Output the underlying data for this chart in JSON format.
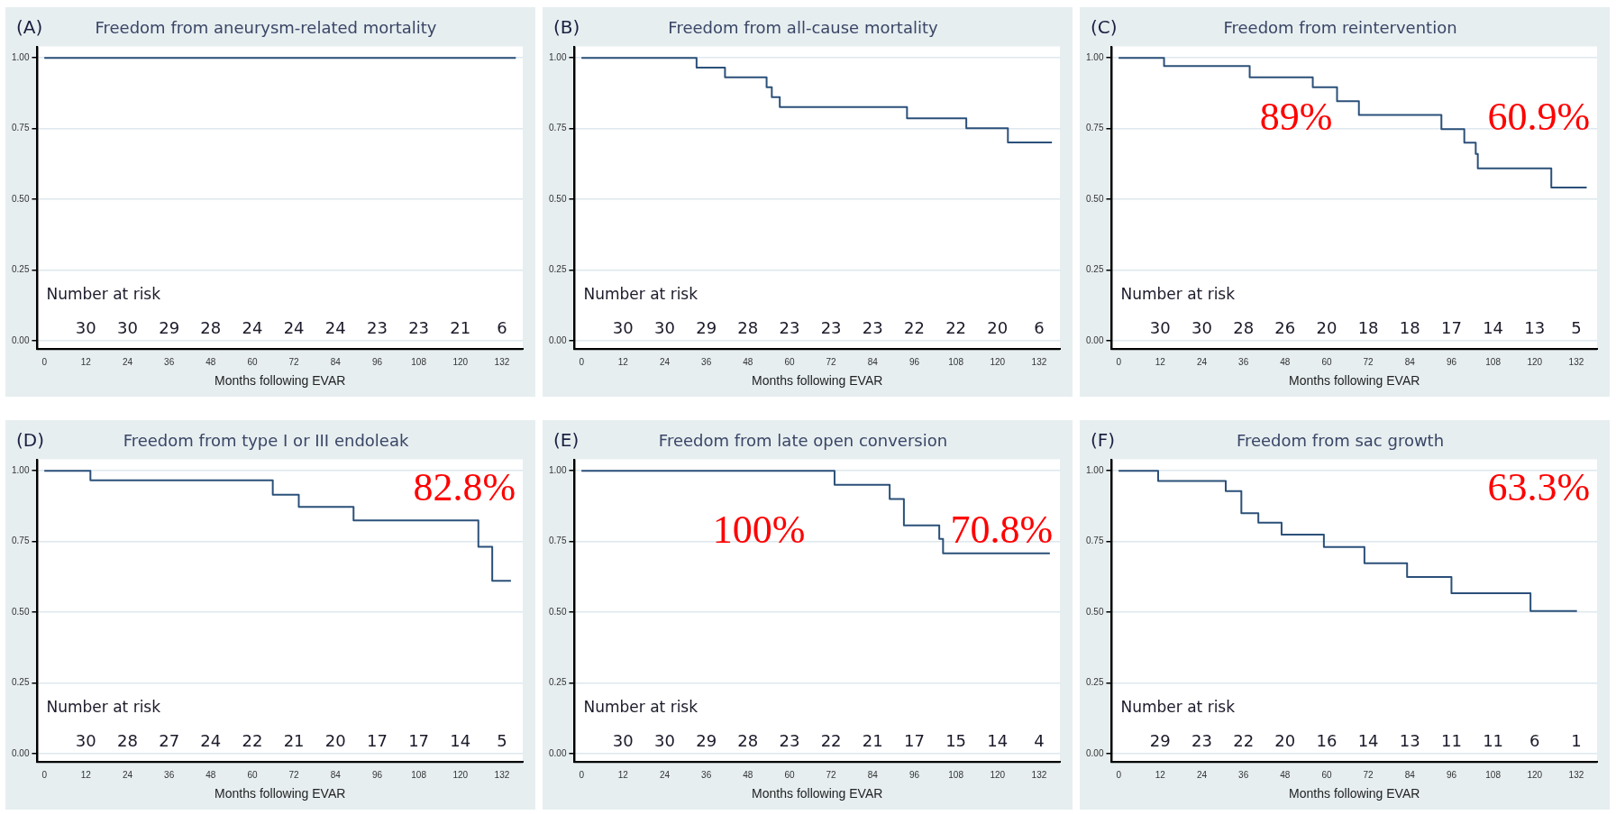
{
  "chart_data": [
    {
      "type": "step",
      "title": "Freedom from aneurysm-related mortality",
      "subtitle": "(A)",
      "xlabel": "Months following EVAR",
      "color": "#2b5079",
      "x": [
        0,
        136
      ],
      "values": [
        1,
        1
      ],
      "xlim": [
        -2,
        138
      ],
      "ylim": [
        -0.03,
        1.04
      ],
      "xticks": [
        0,
        12,
        24,
        36,
        48,
        60,
        72,
        84,
        96,
        108,
        120,
        132
      ],
      "yticks": [
        {
          "value": 0,
          "label": "0.00"
        },
        {
          "value": 0.25,
          "label": "0.25"
        },
        {
          "value": 0.5,
          "label": "0.50"
        },
        {
          "value": 0.75,
          "label": "0.75"
        },
        {
          "value": 1,
          "label": "1.00"
        }
      ],
      "grid": "y",
      "annotations": [
        "Number at risk",
        "30",
        "30",
        "29",
        "28",
        "24",
        "24",
        "24",
        "23",
        "23",
        "21",
        "6"
      ]
    },
    {
      "type": "step",
      "title": "Freedom from all-cause mortality",
      "subtitle": "(B)",
      "xlabel": "Months following EVAR",
      "color": "#2b5079",
      "x": [
        0,
        33.2,
        41.4,
        53.4,
        54.9,
        57.2,
        93.9,
        111,
        123,
        135.7
      ],
      "values": [
        1,
        0.965,
        0.931,
        0.896,
        0.861,
        0.826,
        0.786,
        0.751,
        0.701,
        0.701
      ],
      "xlim": [
        -2,
        138
      ],
      "ylim": [
        -0.03,
        1.04
      ],
      "xticks": [
        0,
        12,
        24,
        36,
        48,
        60,
        72,
        84,
        96,
        108,
        120,
        132
      ],
      "yticks": [
        {
          "value": 0,
          "label": "0.00"
        },
        {
          "value": 0.25,
          "label": "0.25"
        },
        {
          "value": 0.5,
          "label": "0.50"
        },
        {
          "value": 0.75,
          "label": "0.75"
        },
        {
          "value": 1,
          "label": "1.00"
        }
      ],
      "grid": "y",
      "annotations": [
        "Number at risk",
        "30",
        "30",
        "29",
        "28",
        "23",
        "23",
        "23",
        "22",
        "22",
        "20",
        "6"
      ]
    },
    {
      "type": "step",
      "title": "Freedom from reintervention",
      "subtitle": "(C)",
      "xlabel": "Months following EVAR",
      "color": "#2b5079",
      "x": [
        0,
        13.1,
        37.8,
        56,
        63,
        69.3,
        93.1,
        99.7,
        103,
        103.6,
        124.8,
        135
      ],
      "values": [
        1,
        0.971,
        0.931,
        0.896,
        0.847,
        0.798,
        0.748,
        0.7,
        0.66,
        0.609,
        0.541,
        0.541
      ],
      "xlim": [
        -2,
        138
      ],
      "ylim": [
        -0.03,
        1.04
      ],
      "xticks": [
        0,
        12,
        24,
        36,
        48,
        60,
        72,
        84,
        96,
        108,
        120,
        132
      ],
      "yticks": [
        {
          "value": 0,
          "label": "0.00"
        },
        {
          "value": 0.25,
          "label": "0.25"
        },
        {
          "value": 0.5,
          "label": "0.50"
        },
        {
          "value": 0.75,
          "label": "0.75"
        },
        {
          "value": 1,
          "label": "1.00"
        }
      ],
      "grid": "y",
      "annotations": [
        "Number at risk",
        "30",
        "30",
        "28",
        "26",
        "20",
        "18",
        "18",
        "17",
        "14",
        "13",
        "5",
        "89%",
        "60.9%"
      ]
    },
    {
      "type": "step",
      "title": "Freedom from type I or III endoleak",
      "subtitle": "(D)",
      "xlabel": "Months following EVAR",
      "color": "#2b5079",
      "x": [
        0,
        13.3,
        65.9,
        73.4,
        89.2,
        125.2,
        129.2,
        134.6
      ],
      "values": [
        1,
        0.966,
        0.915,
        0.872,
        0.824,
        0.731,
        0.611,
        0.611
      ],
      "xlim": [
        -2,
        138
      ],
      "ylim": [
        -0.03,
        1.04
      ],
      "xticks": [
        0,
        12,
        24,
        36,
        48,
        60,
        72,
        84,
        96,
        108,
        120,
        132
      ],
      "yticks": [
        {
          "value": 0,
          "label": "0.00"
        },
        {
          "value": 0.25,
          "label": "0.25"
        },
        {
          "value": 0.5,
          "label": "0.50"
        },
        {
          "value": 0.75,
          "label": "0.75"
        },
        {
          "value": 1,
          "label": "1.00"
        }
      ],
      "grid": "y",
      "annotations": [
        "Number at risk",
        "30",
        "28",
        "27",
        "24",
        "22",
        "21",
        "20",
        "17",
        "17",
        "14",
        "5",
        "82.8%"
      ]
    },
    {
      "type": "step",
      "title": "Freedom from late open conversion",
      "subtitle": "(E)",
      "xlabel": "Months following EVAR",
      "color": "#2b5079",
      "x": [
        0,
        73,
        88.9,
        93,
        103.2,
        104.3,
        135.1
      ],
      "values": [
        1,
        0.95,
        0.9,
        0.807,
        0.759,
        0.708,
        0.708
      ],
      "xlim": [
        -2,
        138
      ],
      "ylim": [
        -0.03,
        1.04
      ],
      "xticks": [
        0,
        12,
        24,
        36,
        48,
        60,
        72,
        84,
        96,
        108,
        120,
        132
      ],
      "yticks": [
        {
          "value": 0,
          "label": "0.00"
        },
        {
          "value": 0.25,
          "label": "0.25"
        },
        {
          "value": 0.5,
          "label": "0.50"
        },
        {
          "value": 0.75,
          "label": "0.75"
        },
        {
          "value": 1,
          "label": "1.00"
        }
      ],
      "grid": "y",
      "annotations": [
        "Number at risk",
        "30",
        "30",
        "29",
        "28",
        "23",
        "22",
        "21",
        "17",
        "15",
        "14",
        "4",
        "100%",
        "70.8%"
      ]
    },
    {
      "type": "step",
      "title": "Freedom from sac growth",
      "subtitle": "(F)",
      "xlabel": "Months following EVAR",
      "color": "#2b5079",
      "x": [
        0,
        11.4,
        30.9,
        35.4,
        40.3,
        47,
        59.2,
        70.9,
        83.2,
        96,
        118.8,
        132.2
      ],
      "values": [
        1,
        0.964,
        0.928,
        0.85,
        0.816,
        0.774,
        0.73,
        0.673,
        0.624,
        0.567,
        0.504,
        0.504
      ],
      "xlim": [
        -2,
        138
      ],
      "ylim": [
        -0.03,
        1.04
      ],
      "xticks": [
        0,
        12,
        24,
        36,
        48,
        60,
        72,
        84,
        96,
        108,
        120,
        132
      ],
      "yticks": [
        {
          "value": 0,
          "label": "0.00"
        },
        {
          "value": 0.25,
          "label": "0.25"
        },
        {
          "value": 0.5,
          "label": "0.50"
        },
        {
          "value": 0.75,
          "label": "0.75"
        },
        {
          "value": 1,
          "label": "1.00"
        }
      ],
      "grid": "y",
      "annotations": [
        "Number at risk",
        "29",
        "23",
        "22",
        "20",
        "16",
        "14",
        "13",
        "11",
        "11",
        "6",
        "1",
        "63.3%"
      ]
    }
  ]
}
